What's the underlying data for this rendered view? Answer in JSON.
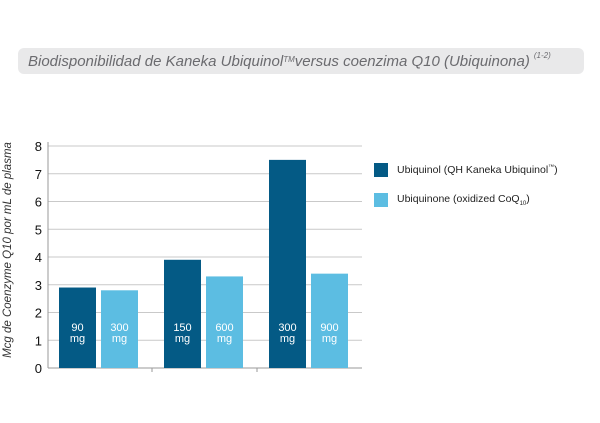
{
  "title": {
    "main": "Biodisponibilidad de Kaneka Ubiquinol",
    "tm": "TM",
    "rest": " versus coenzima Q10 (Ubiquinona)",
    "refs": "(1-2)"
  },
  "legend": [
    {
      "label": "Ubiquinol (QH Kaneka Ubiquinol",
      "sup": "™",
      "tail": ")",
      "color": "#045a85"
    },
    {
      "label": "Ubiquinone (oxidized CoQ",
      "sub": "10",
      "tail": ")",
      "color": "#5cbde2"
    }
  ],
  "chart_data": {
    "type": "bar",
    "ylabel": "Mcg de Coenzyme Q10 por mL de plasma",
    "ylim": [
      0,
      8
    ],
    "yticks": [
      "0",
      "1",
      "2",
      "3",
      "4",
      "5",
      "6",
      "7",
      "8"
    ],
    "grid": true,
    "legend_position": "right",
    "series": [
      {
        "name": "Ubiquinol (QH Kaneka Ubiquinol™)",
        "color": "#045a85",
        "values": [
          2.9,
          3.9,
          7.5
        ],
        "bar_labels": [
          [
            "90",
            "mg"
          ],
          [
            "150",
            "mg"
          ],
          [
            "300",
            "mg"
          ]
        ]
      },
      {
        "name": "Ubiquinone (oxidized CoQ10)",
        "color": "#5cbde2",
        "values": [
          2.8,
          3.3,
          3.4
        ],
        "bar_labels": [
          [
            "300",
            "mg"
          ],
          [
            "600",
            "mg"
          ],
          [
            "900",
            "mg"
          ]
        ]
      }
    ]
  }
}
